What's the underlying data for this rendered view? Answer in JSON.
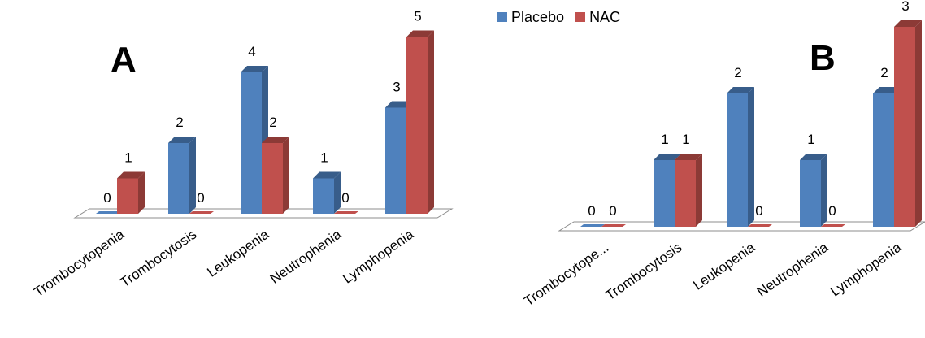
{
  "colors": {
    "placebo_front": "#4F81BD",
    "placebo_side": "#385D8A",
    "nac_front": "#C0504D",
    "nac_side": "#8C3A36"
  },
  "legend": [
    {
      "name": "Placebo",
      "color": "#4F81BD"
    },
    {
      "name": "NAC",
      "color": "#C0504D"
    }
  ],
  "chart_data": [
    {
      "type": "bar",
      "panel_label": "A",
      "title": "",
      "xlabel": "",
      "ylabel": "",
      "grid": false,
      "legend_position": "top",
      "categories": [
        "Trombocytopenia",
        "Trombocytosis",
        "Leukopenia",
        "Neutrophenia",
        "Lymphopenia"
      ],
      "series": [
        {
          "name": "Placebo",
          "values": [
            0,
            2,
            4,
            1,
            3
          ]
        },
        {
          "name": "NAC",
          "values": [
            1,
            0,
            2,
            0,
            5
          ]
        }
      ],
      "ylim": [
        0,
        5
      ]
    },
    {
      "type": "bar",
      "panel_label": "B",
      "title": "",
      "xlabel": "",
      "ylabel": "",
      "grid": false,
      "legend_position": "top",
      "categories": [
        "Trombocytope...",
        "Trombocytosis",
        "Leukopenia",
        "Neutrophenia",
        "Lymphopenia"
      ],
      "series": [
        {
          "name": "Placebo",
          "values": [
            0,
            1,
            2,
            1,
            2
          ]
        },
        {
          "name": "NAC",
          "values": [
            0,
            1,
            0,
            0,
            3
          ]
        }
      ],
      "ylim": [
        0,
        3
      ]
    }
  ]
}
